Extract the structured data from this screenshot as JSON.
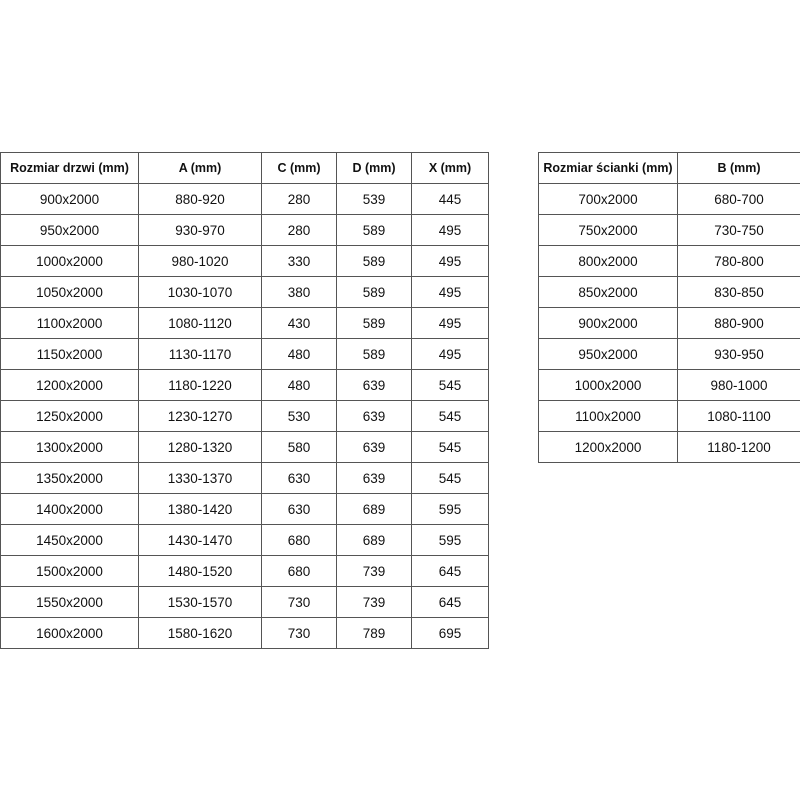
{
  "doors_table": {
    "headers": [
      "Rozmiar drzwi (mm)",
      "A (mm)",
      "C (mm)",
      "D (mm)",
      "X (mm)"
    ],
    "rows": [
      [
        "900x2000",
        "880-920",
        "280",
        "539",
        "445"
      ],
      [
        "950x2000",
        "930-970",
        "280",
        "589",
        "495"
      ],
      [
        "1000x2000",
        "980-1020",
        "330",
        "589",
        "495"
      ],
      [
        "1050x2000",
        "1030-1070",
        "380",
        "589",
        "495"
      ],
      [
        "1100x2000",
        "1080-1120",
        "430",
        "589",
        "495"
      ],
      [
        "1150x2000",
        "1130-1170",
        "480",
        "589",
        "495"
      ],
      [
        "1200x2000",
        "1180-1220",
        "480",
        "639",
        "545"
      ],
      [
        "1250x2000",
        "1230-1270",
        "530",
        "639",
        "545"
      ],
      [
        "1300x2000",
        "1280-1320",
        "580",
        "639",
        "545"
      ],
      [
        "1350x2000",
        "1330-1370",
        "630",
        "639",
        "545"
      ],
      [
        "1400x2000",
        "1380-1420",
        "630",
        "689",
        "595"
      ],
      [
        "1450x2000",
        "1430-1470",
        "680",
        "689",
        "595"
      ],
      [
        "1500x2000",
        "1480-1520",
        "680",
        "739",
        "645"
      ],
      [
        "1550x2000",
        "1530-1570",
        "730",
        "739",
        "645"
      ],
      [
        "1600x2000",
        "1580-1620",
        "730",
        "789",
        "695"
      ]
    ]
  },
  "wall_table": {
    "headers": [
      "Rozmiar ścianki (mm)",
      "B (mm)"
    ],
    "rows": [
      [
        "700x2000",
        "680-700"
      ],
      [
        "750x2000",
        "730-750"
      ],
      [
        "800x2000",
        "780-800"
      ],
      [
        "850x2000",
        "830-850"
      ],
      [
        "900x2000",
        "880-900"
      ],
      [
        "950x2000",
        "930-950"
      ],
      [
        "1000x2000",
        "980-1000"
      ],
      [
        "1100x2000",
        "1080-1100"
      ],
      [
        "1200x2000",
        "1180-1200"
      ]
    ]
  }
}
